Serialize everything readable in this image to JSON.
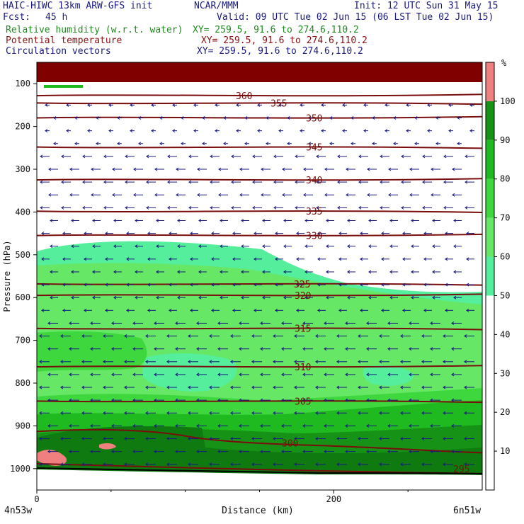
{
  "header": {
    "model_title": "HAIC-HIWC 13km ARW-GFS init",
    "org": "NCAR/MMM",
    "init": "Init: 12 UTC Sun 31 May 15",
    "fcst_label": "Fcst:",
    "fcst_value": "45 h",
    "valid": "Valid: 09 UTC Tue 02 Jun 15 (06 LST Tue 02 Jun 15)",
    "field1_name": "Relative humidity (w.r.t. water)",
    "field1_xy": "XY= 259.5, 91.6 to 274.6,110.2",
    "field2_name": "Potential temperature",
    "field2_xy": "XY= 259.5, 91.6 to 274.6,110.2",
    "field3_name": "Circulation vectors",
    "field3_xy": "XY= 259.5, 91.6 to 274.6,110.2"
  },
  "colors": {
    "header_navy": "#1a1a80",
    "header_green": "#1f8a1f",
    "header_maroon": "#8b1010",
    "isentrope": "#7a0d0d",
    "vector": "#1a1a80",
    "terrain": "#000000"
  },
  "chart_data": {
    "type": "cross-section",
    "xlabel": "Distance (km)",
    "ylabel": "Pressure (hPa)",
    "x_ticks": [
      "0",
      "200"
    ],
    "x_range": [
      0,
      300
    ],
    "y_ticks": [
      "100",
      "200",
      "300",
      "400",
      "500",
      "600",
      "700",
      "800",
      "900",
      "1000"
    ],
    "y_range": [
      1050,
      50
    ],
    "left_endpoint_label": "4n53w",
    "right_endpoint_label": "6n51w",
    "colorbar": {
      "unit": "%",
      "levels": [
        {
          "lo": 0,
          "hi": 50,
          "color": "#ffffff"
        },
        {
          "lo": 50,
          "hi": 60,
          "color": "#55ee9c"
        },
        {
          "lo": 60,
          "hi": 70,
          "color": "#66e766"
        },
        {
          "lo": 70,
          "hi": 80,
          "color": "#3ed83e"
        },
        {
          "lo": 80,
          "hi": 90,
          "color": "#1fba1f"
        },
        {
          "lo": 90,
          "hi": 100,
          "color": "#169316"
        },
        {
          "lo": 100,
          "hi": 110,
          "color": "#f08080"
        }
      ],
      "tick_labels": [
        "10",
        "20",
        "30",
        "40",
        "50",
        "60",
        "70",
        "80",
        "90",
        "100"
      ]
    },
    "theta_contours": [
      {
        "label": "360",
        "p": 128
      },
      {
        "label": "355",
        "p": 145
      },
      {
        "label": "350",
        "p": 180
      },
      {
        "label": "345",
        "p": 248
      },
      {
        "label": "340",
        "p": 325
      },
      {
        "label": "335",
        "p": 398
      },
      {
        "label": "330",
        "p": 455
      },
      {
        "label": "325",
        "p": 568
      },
      {
        "label": "320",
        "p": 595
      },
      {
        "label": "315",
        "p": 672
      },
      {
        "label": "310",
        "p": 762
      },
      {
        "label": "305",
        "p": 842
      },
      {
        "label": "300",
        "p": 943
      },
      {
        "label": "295",
        "p": 1005
      }
    ],
    "rh_regions": [
      {
        "rh": 100,
        "note": "stratospheric band near top (above ~100 hPa)"
      },
      {
        "rh": 55,
        "note": "moist layer from ~470 hPa (left) down to surface"
      },
      {
        "rh": 65,
        "note": "middle troposphere 550–900 hPa"
      },
      {
        "rh": 75,
        "note": "lower troposphere 850–950 hPa"
      },
      {
        "rh": 85,
        "note": "boundary layer near surface"
      },
      {
        "rh": 95,
        "note": "near-saturated pockets left side ~930–980 hPa"
      }
    ],
    "wind": "predominantly easterly flow (vectors pointing left) throughout the column"
  }
}
